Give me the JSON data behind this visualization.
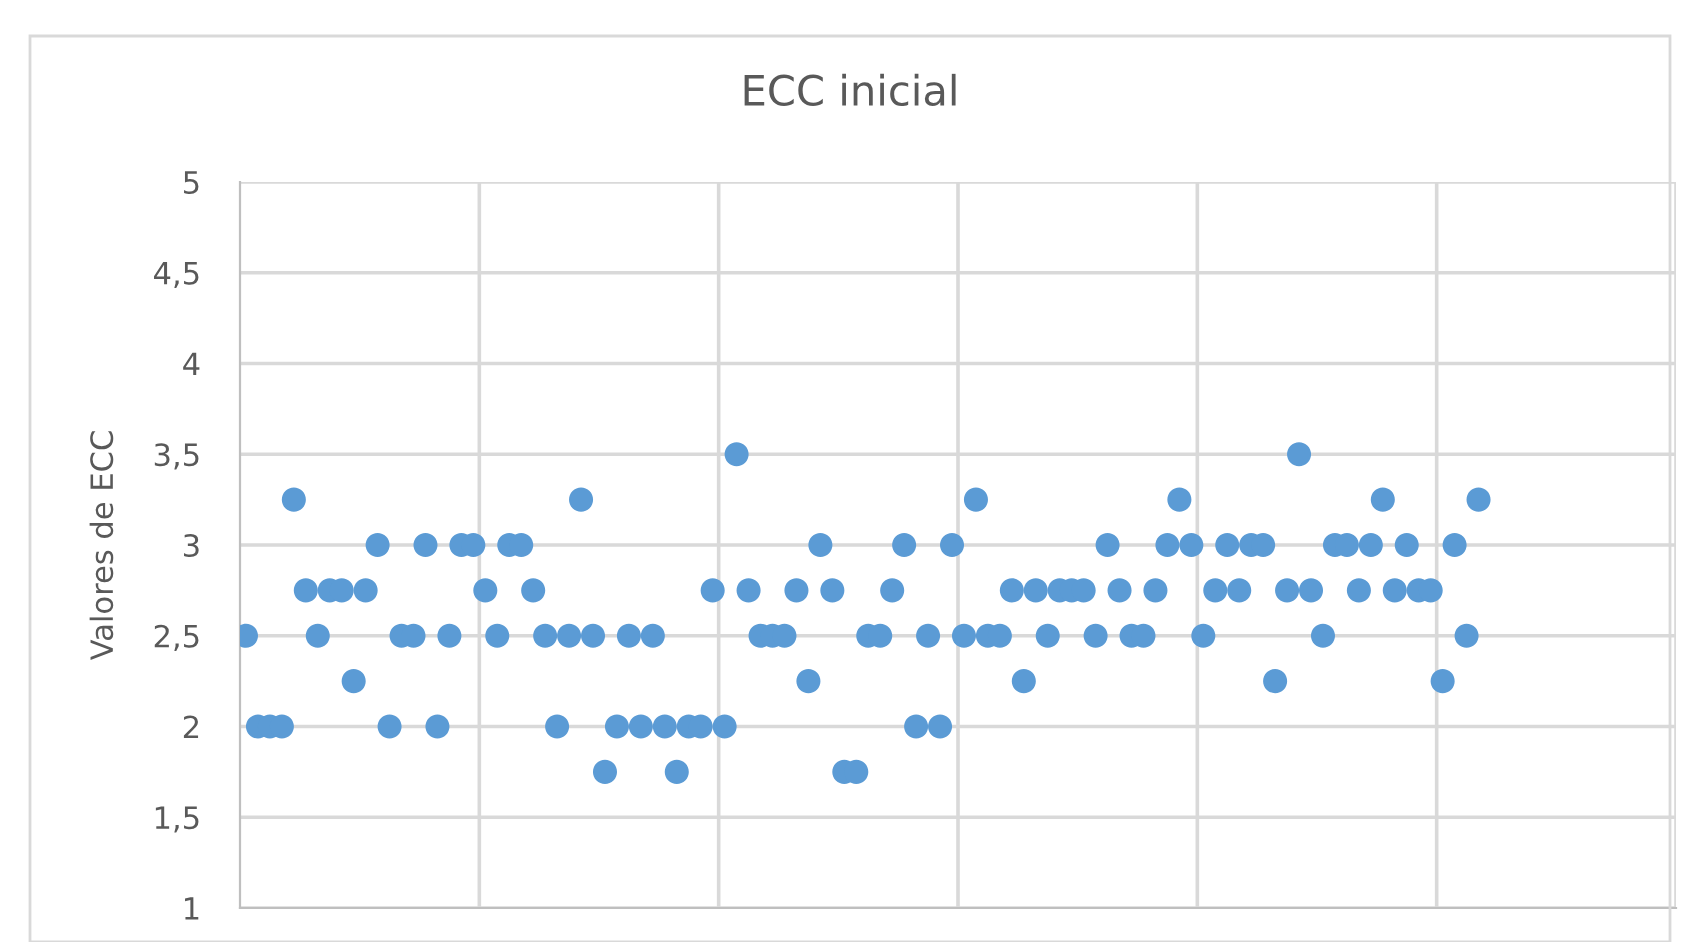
{
  "chart_data": {
    "type": "scatter",
    "title": "ECC inicial",
    "ylabel": "Valores de ECC",
    "categories": [
      null,
      null,
      null,
      null,
      null,
      null,
      null,
      null,
      null,
      null,
      null,
      null,
      null,
      null,
      null,
      null,
      null,
      null,
      null,
      null,
      null,
      null,
      null,
      null,
      null,
      null,
      null,
      null,
      null,
      null,
      null,
      null,
      null,
      null,
      null,
      null,
      null,
      null,
      null,
      null,
      null,
      null,
      null,
      null,
      null,
      null,
      null,
      null,
      null,
      null,
      null,
      null,
      null,
      null,
      null,
      null,
      null,
      null,
      null,
      null,
      null,
      null,
      null,
      null,
      null,
      null,
      null,
      null,
      null,
      null,
      null,
      null,
      null,
      null,
      null,
      null,
      null,
      null,
      null,
      null,
      null,
      null,
      null,
      null,
      null,
      null,
      null,
      null,
      null,
      null,
      null,
      null,
      null,
      null,
      null,
      null,
      null,
      null,
      null,
      null,
      null,
      null,
      null,
      null,
      null,
      null,
      null,
      null,
      null,
      null,
      null,
      null,
      null,
      null,
      null,
      null,
      null,
      null,
      null,
      null
    ],
    "series": [
      {
        "color": "#5b9bd5",
        "values": [
          2.5,
          2,
          2,
          2,
          3.25,
          2.75,
          2.5,
          2.75,
          2.75,
          2.25,
          2.75,
          3,
          2,
          2.5,
          2.5,
          3,
          2,
          2.5,
          3,
          3,
          2.75,
          2.5,
          3,
          3,
          2.75,
          2.5,
          2,
          2.5,
          3.25,
          2.5,
          1.75,
          2,
          2.5,
          2,
          2.5,
          2,
          1.75,
          2,
          2,
          2.75,
          2,
          3.5,
          2.75,
          2.5,
          2.5,
          2.5,
          2.75,
          2.25,
          3,
          2.75,
          1.75,
          1.75,
          2.5,
          2.5,
          2.75,
          3,
          2,
          2.5,
          2,
          3,
          2.5,
          3.25,
          2.5,
          2.5,
          2.75,
          2.25,
          2.75,
          2.5,
          2.75,
          2.75,
          2.75,
          2.5,
          3,
          2.75,
          2.5,
          2.5,
          2.75,
          3,
          3.25,
          3,
          2.5,
          2.75,
          3,
          2.75,
          3,
          3,
          2.25,
          2.75,
          3.5,
          2.75,
          2.5,
          3,
          3,
          2.75,
          3,
          3.25,
          2.75,
          3,
          2.75,
          2.75,
          2.25,
          3,
          2.5,
          3.25,
          null,
          null,
          null,
          null,
          null,
          null,
          null,
          null,
          null,
          null,
          null,
          null,
          null,
          null,
          null,
          null
        ]
      }
    ],
    "ylim": [
      1,
      5
    ],
    "yticks": [
      {
        "value": 1,
        "label": "1"
      },
      {
        "value": 1.5,
        "label": "1,5"
      },
      {
        "value": 2,
        "label": "2"
      },
      {
        "value": 2.5,
        "label": "2,5"
      },
      {
        "value": 3,
        "label": "3"
      },
      {
        "value": 3.5,
        "label": "3,5"
      },
      {
        "value": 4,
        "label": "4"
      },
      {
        "value": 4.5,
        "label": "4,5"
      },
      {
        "value": 5,
        "label": "5"
      }
    ],
    "tick_labels": "y",
    "grid": true,
    "marker": "circle"
  }
}
